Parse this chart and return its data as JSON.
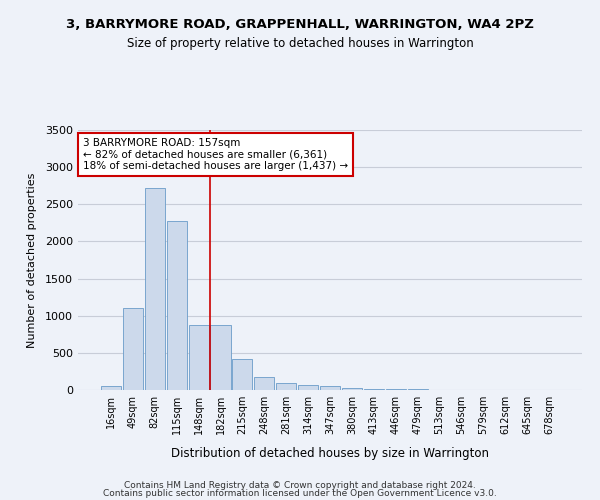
{
  "title": "3, BARRYMORE ROAD, GRAPPENHALL, WARRINGTON, WA4 2PZ",
  "subtitle": "Size of property relative to detached houses in Warrington",
  "xlabel": "Distribution of detached houses by size in Warrington",
  "ylabel": "Number of detached properties",
  "footer1": "Contains HM Land Registry data © Crown copyright and database right 2024.",
  "footer2": "Contains public sector information licensed under the Open Government Licence v3.0.",
  "bar_categories": [
    "16sqm",
    "49sqm",
    "82sqm",
    "115sqm",
    "148sqm",
    "182sqm",
    "215sqm",
    "248sqm",
    "281sqm",
    "314sqm",
    "347sqm",
    "380sqm",
    "413sqm",
    "446sqm",
    "479sqm",
    "513sqm",
    "546sqm",
    "579sqm",
    "612sqm",
    "645sqm",
    "678sqm"
  ],
  "bar_values": [
    50,
    1100,
    2720,
    2280,
    880,
    870,
    420,
    170,
    100,
    65,
    50,
    30,
    20,
    15,
    10,
    5,
    3,
    3,
    2,
    2,
    2
  ],
  "bar_color": "#ccd9eb",
  "bar_edgecolor": "#6a9cc9",
  "background_color": "#eef2f9",
  "grid_color": "#d8dde8",
  "vline_x": 4.5,
  "vline_color": "#cc0000",
  "annotation_text": "3 BARRYMORE ROAD: 157sqm\n← 82% of detached houses are smaller (6,361)\n18% of semi-detached houses are larger (1,437) →",
  "annotation_box_color": "white",
  "annotation_box_edgecolor": "#cc0000",
  "ylim": [
    0,
    3500
  ],
  "yticks": [
    0,
    500,
    1000,
    1500,
    2000,
    2500,
    3000,
    3500
  ]
}
